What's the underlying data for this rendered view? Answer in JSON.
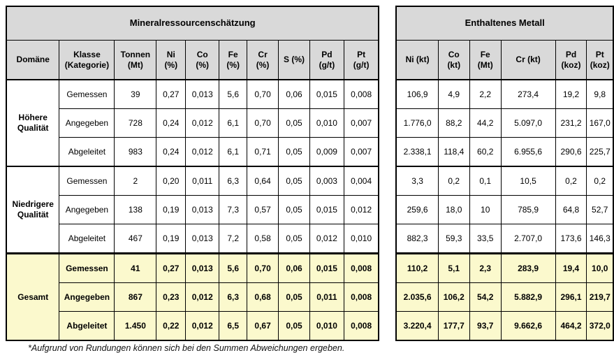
{
  "colors": {
    "header_bg": "#d9d9d9",
    "total_row_bg": "#fbf9cd",
    "border": "#000000",
    "text": "#000000"
  },
  "footnote": "*Aufgrund von Rundungen können sich bei den Summen Abweichungen ergeben.",
  "chart_data": {
    "type": "table",
    "left_table_title": "Mineralressourcenschätzung",
    "right_table_title": "Enthaltenes Metall",
    "left_columns": [
      [
        "Domäne"
      ],
      [
        "Klasse",
        "(Kategorie)"
      ],
      [
        "Tonnen",
        "(Mt)"
      ],
      [
        "Ni",
        "(%)"
      ],
      [
        "Co",
        "(%)"
      ],
      [
        "Fe",
        "(%)"
      ],
      [
        "Cr",
        "(%)"
      ],
      [
        "S (%)"
      ],
      [
        "Pd",
        "(g/t)"
      ],
      [
        "Pt",
        "(g/t)"
      ]
    ],
    "right_columns": [
      [
        "Ni (kt)"
      ],
      [
        "Co",
        "(kt)"
      ],
      [
        "Fe",
        "(Mt)"
      ],
      [
        "Cr (kt)"
      ],
      [
        "Pd",
        "(koz)"
      ],
      [
        "Pt",
        "(koz)"
      ]
    ],
    "sections": [
      {
        "domain": "Höhere Qualität",
        "highlight": false,
        "rows": [
          {
            "klasse": "Gemessen",
            "resource": [
              "39",
              "0,27",
              "0,013",
              "5,6",
              "0,70",
              "0,06",
              "0,015",
              "0,008"
            ],
            "metal": [
              "106,9",
              "4,9",
              "2,2",
              "273,4",
              "19,2",
              "9,8"
            ]
          },
          {
            "klasse": "Angegeben",
            "resource": [
              "728",
              "0,24",
              "0,012",
              "6,1",
              "0,70",
              "0,05",
              "0,010",
              "0,007"
            ],
            "metal": [
              "1.776,0",
              "88,2",
              "44,2",
              "5.097,0",
              "231,2",
              "167,0"
            ]
          },
          {
            "klasse": "Abgeleitet",
            "resource": [
              "983",
              "0,24",
              "0,012",
              "6,1",
              "0,71",
              "0,05",
              "0,009",
              "0,007"
            ],
            "metal": [
              "2.338,1",
              "118,4",
              "60,2",
              "6.955,6",
              "290,6",
              "225,7"
            ]
          }
        ]
      },
      {
        "domain": "Niedrigere Qualität",
        "highlight": false,
        "rows": [
          {
            "klasse": "Gemessen",
            "resource": [
              "2",
              "0,20",
              "0,011",
              "6,3",
              "0,64",
              "0,05",
              "0,003",
              "0,004"
            ],
            "metal": [
              "3,3",
              "0,2",
              "0,1",
              "10,5",
              "0,2",
              "0,2"
            ]
          },
          {
            "klasse": "Angegeben",
            "resource": [
              "138",
              "0,19",
              "0,013",
              "7,3",
              "0,57",
              "0,05",
              "0,015",
              "0,012"
            ],
            "metal": [
              "259,6",
              "18,0",
              "10",
              "785,9",
              "64,8",
              "52,7"
            ]
          },
          {
            "klasse": "Abgeleitet",
            "resource": [
              "467",
              "0,19",
              "0,013",
              "7,2",
              "0,58",
              "0,05",
              "0,012",
              "0,010"
            ],
            "metal": [
              "882,3",
              "59,3",
              "33,5",
              "2.707,0",
              "173,6",
              "146,3"
            ]
          }
        ]
      },
      {
        "domain": "Gesamt",
        "highlight": true,
        "rows": [
          {
            "klasse": "Gemessen",
            "resource": [
              "41",
              "0,27",
              "0,013",
              "5,6",
              "0,70",
              "0,06",
              "0,015",
              "0,008"
            ],
            "metal": [
              "110,2",
              "5,1",
              "2,3",
              "283,9",
              "19,4",
              "10,0"
            ]
          },
          {
            "klasse": "Angegeben",
            "resource": [
              "867",
              "0,23",
              "0,012",
              "6,3",
              "0,68",
              "0,05",
              "0,011",
              "0,008"
            ],
            "metal": [
              "2.035,6",
              "106,2",
              "54,2",
              "5.882,9",
              "296,1",
              "219,7"
            ]
          },
          {
            "klasse": "Abgeleitet",
            "resource": [
              "1.450",
              "0,22",
              "0,012",
              "6,5",
              "0,67",
              "0,05",
              "0,010",
              "0,008"
            ],
            "metal": [
              "3.220,4",
              "177,7",
              "93,7",
              "9.662,6",
              "464,2",
              "372,0"
            ]
          }
        ]
      }
    ]
  }
}
